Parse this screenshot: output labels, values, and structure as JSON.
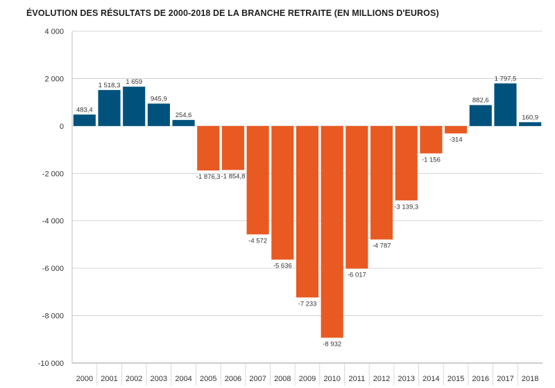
{
  "chart_data": {
    "type": "bar",
    "title": "ÉVOLUTION DES RÉSULTATS DE 2000-2018 DE LA BRANCHE RETRAITE (EN MILLIONS D'EUROS)",
    "xlabel": "",
    "ylabel": "",
    "categories": [
      "2000",
      "2001",
      "2002",
      "2003",
      "2004",
      "2005",
      "2006",
      "2007",
      "2008",
      "2009",
      "2010",
      "2011",
      "2012",
      "2013",
      "2014",
      "2015",
      "2016",
      "2017",
      "2018"
    ],
    "values": [
      483.4,
      1518.3,
      1659,
      945.9,
      254.6,
      -1876.3,
      -1854.8,
      -4572,
      -5636,
      -7233,
      -8932,
      -6017,
      -4787,
      -3139.3,
      -1156,
      -314,
      882.6,
      1797.5,
      160.9
    ],
    "value_labels": [
      "483,4",
      "1 518,3",
      "1 659",
      "945,9",
      "254,6",
      "-1 876,3",
      "-1 854,8",
      "-4 572",
      "-5 636",
      "-7 233",
      "-8 932",
      "-6 017",
      "-4 787",
      "-3 139,3",
      "-1 156",
      "-314",
      "882,6",
      "1 797,5",
      "160,9"
    ],
    "ylim": [
      -10000,
      4000
    ],
    "y_ticks": [
      4000,
      2000,
      0,
      -2000,
      -4000,
      -6000,
      -8000,
      -10000
    ],
    "y_tick_labels": [
      "4 000",
      "2 000",
      "0",
      "-2 000",
      "-4 000",
      "-6 000",
      "-8 000",
      "-10 000"
    ],
    "grid": true,
    "colors": {
      "positive": "#00527d",
      "negative": "#e85a22",
      "grid": "#c8c8c8"
    }
  }
}
